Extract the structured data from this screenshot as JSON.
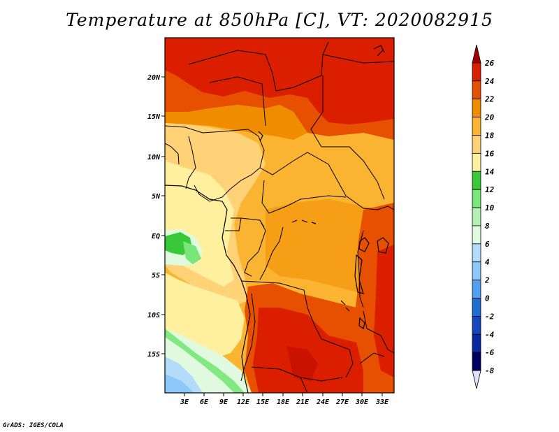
{
  "title": "Temperature at 850hPa [C], VT: 2020082915",
  "credit": "GrADS: IGES/COLA",
  "axes": {
    "lat_labels": [
      "20N",
      "15N",
      "10N",
      "5N",
      "EQ",
      "5S",
      "10S",
      "15S"
    ],
    "lon_labels": [
      "3E",
      "6E",
      "9E",
      "12E",
      "15E",
      "18E",
      "21E",
      "24E",
      "27E",
      "30E",
      "33E"
    ]
  },
  "colorbar": {
    "labels": [
      "26",
      "24",
      "22",
      "20",
      "18",
      "16",
      "14",
      "12",
      "10",
      "8",
      "6",
      "4",
      "2",
      "0",
      "-2",
      "-4",
      "-6",
      "-8"
    ],
    "colors": [
      "#a50000",
      "#dc1e00",
      "#e65000",
      "#f08c00",
      "#fab432",
      "#ffd278",
      "#fff0a0",
      "#38c838",
      "#78e678",
      "#b4f0b4",
      "#e0fae0",
      "#b4dcfa",
      "#8cc8fa",
      "#50a0f0",
      "#1e6ed2",
      "#1446be",
      "#0a28a0",
      "#000064",
      "#e0e0fa"
    ]
  },
  "palette": {
    "deep_red": "#dc1e00",
    "red_orange": "#e65000",
    "orange": "#f08c00",
    "light_orange": "#fab432",
    "tan": "#ffd278",
    "pale_yellow": "#fff0a0",
    "green": "#38c838",
    "light_green": "#78e678",
    "pale_blue": "#b4dcfa",
    "very_pale": "#e0fae0"
  }
}
